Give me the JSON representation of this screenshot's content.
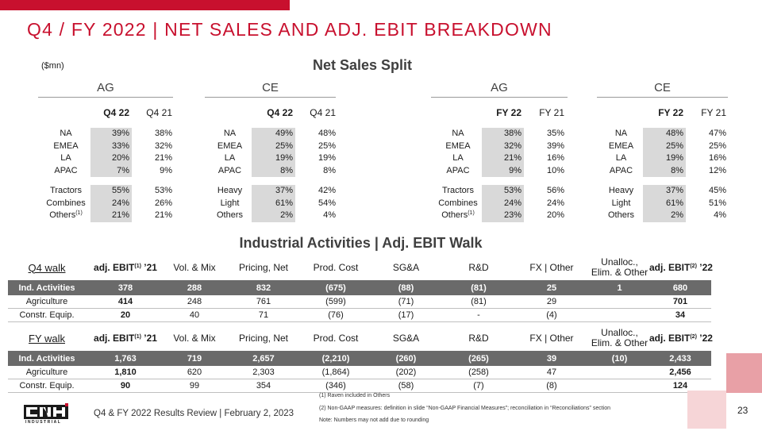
{
  "title": "Q4 / FY 2022 | NET SALES AND ADJ. EBIT BREAKDOWN",
  "unit": "($mn)",
  "net_sales": {
    "title": "Net Sales Split",
    "blocks": [
      {
        "group": "AG",
        "h1": "Q4 22",
        "h2": "Q4 21",
        "regions": [
          [
            "NA",
            "39%",
            "38%"
          ],
          [
            "EMEA",
            "33%",
            "32%"
          ],
          [
            "LA",
            "20%",
            "21%"
          ],
          [
            "APAC",
            "7%",
            "9%"
          ]
        ],
        "products": [
          [
            "Tractors",
            "",
            "55%",
            "53%"
          ],
          [
            "Combines",
            "",
            "24%",
            "26%"
          ],
          [
            "Others",
            "(1)",
            "21%",
            "21%"
          ]
        ]
      },
      {
        "group": "CE",
        "h1": "Q4 22",
        "h2": "Q4 21",
        "regions": [
          [
            "NA",
            "49%",
            "48%"
          ],
          [
            "EMEA",
            "25%",
            "25%"
          ],
          [
            "LA",
            "19%",
            "19%"
          ],
          [
            "APAC",
            "8%",
            "8%"
          ]
        ],
        "products": [
          [
            "Heavy",
            "",
            "37%",
            "42%"
          ],
          [
            "Light",
            "",
            "61%",
            "54%"
          ],
          [
            "Others",
            "",
            "2%",
            "4%"
          ]
        ]
      },
      {
        "group": "AG",
        "h1": "FY 22",
        "h2": "FY 21",
        "regions": [
          [
            "NA",
            "38%",
            "35%"
          ],
          [
            "EMEA",
            "32%",
            "39%"
          ],
          [
            "LA",
            "21%",
            "16%"
          ],
          [
            "APAC",
            "9%",
            "10%"
          ]
        ],
        "products": [
          [
            "Tractors",
            "",
            "53%",
            "56%"
          ],
          [
            "Combines",
            "",
            "24%",
            "24%"
          ],
          [
            "Others",
            "(1)",
            "23%",
            "20%"
          ]
        ]
      },
      {
        "group": "CE",
        "h1": "FY 22",
        "h2": "FY 21",
        "regions": [
          [
            "NA",
            "48%",
            "47%"
          ],
          [
            "EMEA",
            "25%",
            "25%"
          ],
          [
            "LA",
            "19%",
            "16%"
          ],
          [
            "APAC",
            "8%",
            "12%"
          ]
        ],
        "products": [
          [
            "Heavy",
            "",
            "37%",
            "45%"
          ],
          [
            "Light",
            "",
            "61%",
            "51%"
          ],
          [
            "Others",
            "",
            "2%",
            "4%"
          ]
        ]
      }
    ]
  },
  "ebit": {
    "title": "Industrial Activities | Adj. EBIT Walk",
    "col_labels": {
      "start_pre": "adj. EBIT",
      "start_sup": "(1)",
      "start_post": " ’21",
      "vol_mix": "Vol. & Mix",
      "pricing": "Pricing, Net",
      "prod_cost": "Prod. Cost",
      "sga": "SG&A",
      "rnd": "R&D",
      "fx": "FX | Other",
      "unalloc_1": "Unalloc.,",
      "unalloc_2": "Elim. & Other",
      "end_pre": "adj. EBIT",
      "end_sup": "(2)",
      "end_post": " ’22"
    },
    "walks": [
      {
        "name": "Q4 walk",
        "rows": [
          [
            "Ind. Activities",
            "378",
            "288",
            "832",
            "(675)",
            "(88)",
            "(81)",
            "25",
            "1",
            "680"
          ],
          [
            "Agriculture",
            "414",
            "248",
            "761",
            "(599)",
            "(71)",
            "(81)",
            "29",
            "",
            "701"
          ],
          [
            "Constr. Equip.",
            "20",
            "40",
            "71",
            "(76)",
            "(17)",
            "-",
            "(4)",
            "",
            "34"
          ]
        ]
      },
      {
        "name": "FY walk",
        "rows": [
          [
            "Ind. Activities",
            "1,763",
            "719",
            "2,657",
            "(2,210)",
            "(260)",
            "(265)",
            "39",
            "(10)",
            "2,433"
          ],
          [
            "Agriculture",
            "1,810",
            "620",
            "2,303",
            "(1,864)",
            "(202)",
            "(258)",
            "47",
            "",
            "2,456"
          ],
          [
            "Constr. Equip.",
            "90",
            "99",
            "354",
            "(346)",
            "(58)",
            "(7)",
            "(8)",
            "",
            "124"
          ]
        ]
      }
    ]
  },
  "notes": [
    "(1) Raven included in Others",
    "(2) Non-GAAP measures: definition in slide “Non-GAAP Financial Measures”; reconciliation in “Reconciliations” section",
    "Note: Numbers may not add due to rounding"
  ],
  "footer": "Q4 & FY 2022 Results Review | February 2, 2023",
  "page_number": "23",
  "logo_text": "INDUSTRIAL",
  "colors": {
    "accent": "#c8102e",
    "band": "#6a6a6a",
    "shade": "#d9d9d9",
    "deco_dark": "#e8a0a6",
    "deco_light": "#f6d5d7"
  }
}
